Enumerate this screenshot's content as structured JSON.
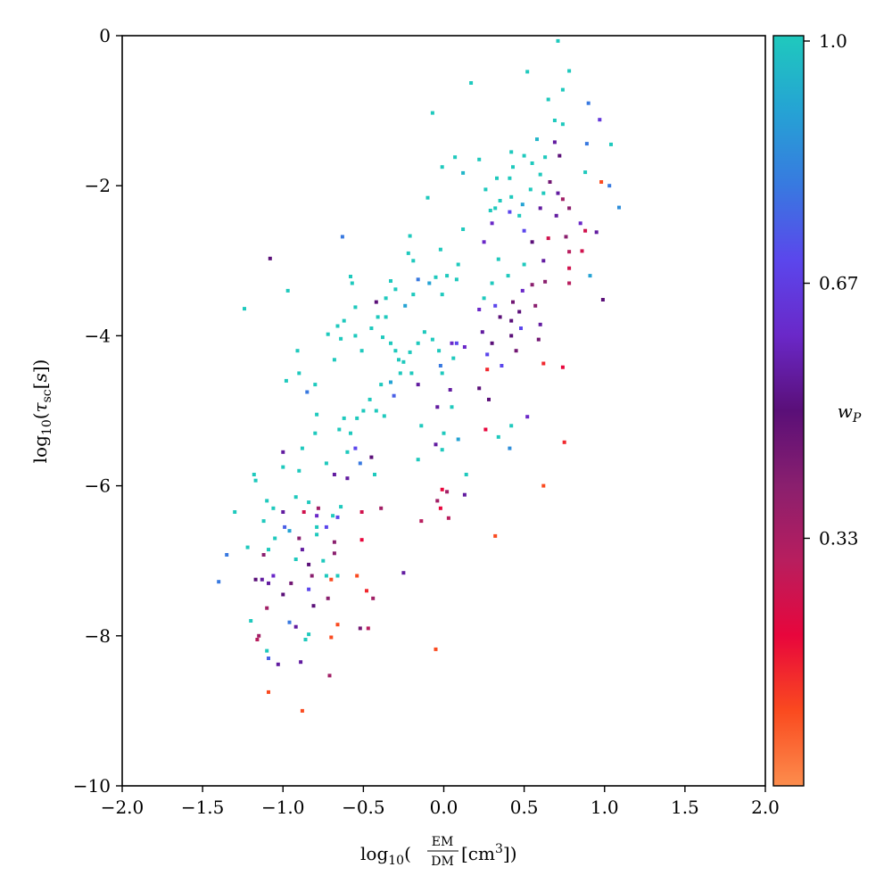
{
  "chart_data": {
    "type": "scatter",
    "title": "",
    "xlabel": "log10(EM/DM[cm^3])",
    "ylabel": "log10(τsc[s])",
    "xlim": [
      -2.0,
      2.0
    ],
    "ylim": [
      -10,
      0
    ],
    "x_ticks": [
      "−2.0",
      "−1.5",
      "−1.0",
      "−0.5",
      "0.0",
      "0.5",
      "1.0",
      "1.5",
      "2.0"
    ],
    "x_tick_values": [
      -2.0,
      -1.5,
      -1.0,
      -0.5,
      0.0,
      0.5,
      1.0,
      1.5,
      2.0
    ],
    "y_ticks": [
      "0",
      "−2",
      "−4",
      "−6",
      "−8",
      "−10"
    ],
    "y_tick_values": [
      0,
      -2,
      -4,
      -6,
      -8,
      -10
    ],
    "grid": false,
    "legend": "none",
    "colorbar": {
      "label": "w_P",
      "ticks": [
        "1.0",
        "0.67",
        "0.33"
      ],
      "tick_values": [
        1.0,
        0.67,
        0.33
      ],
      "range": [
        0.0,
        1.0
      ],
      "colors": [
        "#fc8d4d",
        "#fa4a1f",
        "#e8063c",
        "#b81e5e",
        "#8a1f6e",
        "#5a0f78",
        "#6a28c8",
        "#5b46ec",
        "#3879e0",
        "#25a3d4",
        "#1fc9bd"
      ]
    },
    "points": [
      [
        0.71,
        -0.07,
        1.0
      ],
      [
        0.52,
        -0.48,
        1.0
      ],
      [
        0.78,
        -0.47,
        1.0
      ],
      [
        0.17,
        -0.63,
        1.0
      ],
      [
        0.74,
        -0.72,
        1.0
      ],
      [
        0.65,
        -0.85,
        1.0
      ],
      [
        0.9,
        -0.9,
        0.8
      ],
      [
        -0.07,
        -1.03,
        1.0
      ],
      [
        0.69,
        -1.13,
        1.0
      ],
      [
        0.74,
        -1.18,
        1.0
      ],
      [
        0.97,
        -1.12,
        0.65
      ],
      [
        0.58,
        -1.38,
        0.95
      ],
      [
        0.69,
        -1.42,
        0.55
      ],
      [
        0.89,
        -1.44,
        0.8
      ],
      [
        1.04,
        -1.45,
        1.0
      ],
      [
        0.42,
        -1.55,
        1.0
      ],
      [
        0.5,
        -1.6,
        1.0
      ],
      [
        0.63,
        -1.62,
        1.0
      ],
      [
        0.72,
        -1.6,
        0.5
      ],
      [
        0.55,
        -1.7,
        1.0
      ],
      [
        0.43,
        -1.75,
        1.0
      ],
      [
        0.22,
        -1.65,
        1.0
      ],
      [
        0.07,
        -1.62,
        1.0
      ],
      [
        -0.01,
        -1.75,
        1.0
      ],
      [
        0.12,
        -1.83,
        0.95
      ],
      [
        0.41,
        -1.9,
        1.0
      ],
      [
        0.33,
        -1.9,
        1.0
      ],
      [
        0.6,
        -1.85,
        1.0
      ],
      [
        0.88,
        -1.82,
        1.0
      ],
      [
        0.98,
        -1.95,
        0.1
      ],
      [
        1.03,
        -2.0,
        0.8
      ],
      [
        0.66,
        -1.95,
        0.45
      ],
      [
        0.54,
        -2.05,
        1.0
      ],
      [
        0.62,
        -2.1,
        1.0
      ],
      [
        0.71,
        -2.1,
        0.55
      ],
      [
        0.26,
        -2.05,
        1.0
      ],
      [
        0.42,
        -2.15,
        1.0
      ],
      [
        0.35,
        -2.2,
        1.0
      ],
      [
        0.49,
        -2.25,
        0.9
      ],
      [
        0.74,
        -2.18,
        0.35
      ],
      [
        0.78,
        -2.3,
        0.4
      ],
      [
        0.6,
        -2.3,
        0.55
      ],
      [
        0.7,
        -2.4,
        0.55
      ],
      [
        1.09,
        -2.29,
        0.85
      ],
      [
        -0.1,
        -2.16,
        1.0
      ],
      [
        0.32,
        -2.3,
        1.0
      ],
      [
        0.29,
        -2.33,
        1.0
      ],
      [
        0.47,
        -2.4,
        1.0
      ],
      [
        0.41,
        -2.35,
        0.7
      ],
      [
        0.3,
        -2.5,
        0.6
      ],
      [
        0.85,
        -2.5,
        0.6
      ],
      [
        0.88,
        -2.6,
        0.25
      ],
      [
        0.95,
        -2.62,
        0.55
      ],
      [
        0.5,
        -2.6,
        0.7
      ],
      [
        0.55,
        -2.75,
        0.5
      ],
      [
        0.65,
        -2.7,
        0.25
      ],
      [
        0.76,
        -2.68,
        0.4
      ],
      [
        0.78,
        -2.88,
        0.3
      ],
      [
        0.86,
        -2.87,
        0.25
      ],
      [
        0.25,
        -2.75,
        0.6
      ],
      [
        0.12,
        -2.58,
        1.0
      ],
      [
        -0.21,
        -2.67,
        1.0
      ],
      [
        -0.63,
        -2.68,
        0.8
      ],
      [
        -1.08,
        -2.97,
        0.5
      ],
      [
        -1.24,
        -3.64,
        1.0
      ],
      [
        -0.22,
        -2.9,
        1.0
      ],
      [
        -0.19,
        -3.0,
        1.0
      ],
      [
        -0.02,
        -2.85,
        1.0
      ],
      [
        0.09,
        -3.05,
        1.0
      ],
      [
        0.34,
        -2.98,
        1.0
      ],
      [
        0.5,
        -3.05,
        1.0
      ],
      [
        0.62,
        -3.0,
        0.55
      ],
      [
        0.78,
        -3.1,
        0.25
      ],
      [
        0.91,
        -3.2,
        0.9
      ],
      [
        0.78,
        -3.3,
        0.3
      ],
      [
        0.63,
        -3.28,
        0.4
      ],
      [
        0.99,
        -3.52,
        0.5
      ],
      [
        0.55,
        -3.32,
        0.4
      ],
      [
        0.49,
        -3.4,
        0.6
      ],
      [
        0.4,
        -3.2,
        1.0
      ],
      [
        0.3,
        -3.3,
        1.0
      ],
      [
        0.25,
        -3.5,
        1.0
      ],
      [
        0.32,
        -3.6,
        0.7
      ],
      [
        0.43,
        -3.55,
        0.45
      ],
      [
        0.47,
        -3.68,
        0.5
      ],
      [
        0.57,
        -3.6,
        0.4
      ],
      [
        0.6,
        -3.85,
        0.55
      ],
      [
        0.42,
        -3.8,
        0.5
      ],
      [
        0.48,
        -3.9,
        0.7
      ],
      [
        0.59,
        -4.05,
        0.45
      ],
      [
        0.42,
        -4.0,
        0.5
      ],
      [
        0.45,
        -4.2,
        0.45
      ],
      [
        0.3,
        -4.1,
        0.5
      ],
      [
        0.35,
        -3.75,
        0.5
      ],
      [
        0.24,
        -3.95,
        0.55
      ],
      [
        0.22,
        -3.65,
        0.6
      ],
      [
        0.08,
        -3.25,
        1.0
      ],
      [
        0.02,
        -3.2,
        1.0
      ],
      [
        -0.05,
        -3.22,
        1.0
      ],
      [
        -0.01,
        -3.45,
        1.0
      ],
      [
        -0.09,
        -3.3,
        0.9
      ],
      [
        -0.16,
        -3.25,
        0.8
      ],
      [
        -0.19,
        -3.45,
        1.0
      ],
      [
        -0.24,
        -3.6,
        0.9
      ],
      [
        -0.3,
        -3.38,
        1.0
      ],
      [
        -0.33,
        -3.27,
        1.0
      ],
      [
        -0.36,
        -3.5,
        1.0
      ],
      [
        -0.42,
        -3.55,
        0.5
      ],
      [
        -0.58,
        -3.21,
        1.0
      ],
      [
        -0.57,
        -3.3,
        1.0
      ],
      [
        -0.55,
        -3.62,
        1.0
      ],
      [
        -0.62,
        -3.8,
        1.0
      ],
      [
        -0.66,
        -3.87,
        1.0
      ],
      [
        -0.64,
        -4.04,
        1.0
      ],
      [
        -0.55,
        -4.0,
        1.0
      ],
      [
        -0.51,
        -4.2,
        1.0
      ],
      [
        -0.45,
        -3.9,
        1.0
      ],
      [
        -0.41,
        -3.75,
        1.0
      ],
      [
        -0.36,
        -3.75,
        1.0
      ],
      [
        -0.38,
        -4.02,
        1.0
      ],
      [
        -0.33,
        -4.1,
        1.0
      ],
      [
        -0.3,
        -4.2,
        1.0
      ],
      [
        -0.28,
        -4.32,
        1.0
      ],
      [
        -0.25,
        -4.35,
        1.0
      ],
      [
        -0.21,
        -4.22,
        1.0
      ],
      [
        -0.16,
        -4.1,
        1.0
      ],
      [
        -0.12,
        -3.95,
        1.0
      ],
      [
        -0.07,
        -4.05,
        1.0
      ],
      [
        -0.03,
        -4.2,
        1.0
      ],
      [
        0.05,
        -4.1,
        0.6
      ],
      [
        0.08,
        -4.1,
        0.7
      ],
      [
        -0.02,
        -4.4,
        0.8
      ],
      [
        0.06,
        -4.3,
        1.0
      ],
      [
        -0.01,
        -4.5,
        1.0
      ],
      [
        -0.16,
        -4.65,
        0.55
      ],
      [
        -0.2,
        -4.5,
        1.0
      ],
      [
        -0.27,
        -4.5,
        1.0
      ],
      [
        -0.39,
        -4.65,
        1.0
      ],
      [
        -0.33,
        -4.62,
        0.9
      ],
      [
        -0.31,
        -4.8,
        0.75
      ],
      [
        -0.46,
        -4.85,
        1.0
      ],
      [
        -0.5,
        -5.0,
        1.0
      ],
      [
        -0.54,
        -5.1,
        1.0
      ],
      [
        -0.37,
        -5.07,
        1.0
      ],
      [
        -0.42,
        -5.0,
        1.0
      ],
      [
        -0.62,
        -5.1,
        1.0
      ],
      [
        -0.72,
        -3.98,
        1.0
      ],
      [
        -0.68,
        -4.32,
        1.0
      ],
      [
        -0.85,
        -4.75,
        0.8
      ],
      [
        -0.8,
        -4.65,
        1.0
      ],
      [
        -0.9,
        -4.5,
        1.0
      ],
      [
        -0.98,
        -4.6,
        1.0
      ],
      [
        -0.91,
        -4.2,
        1.0
      ],
      [
        -0.97,
        -3.4,
        1.0
      ],
      [
        -0.79,
        -5.05,
        1.0
      ],
      [
        -0.8,
        -5.3,
        1.0
      ],
      [
        -0.65,
        -5.25,
        1.0
      ],
      [
        -0.58,
        -5.3,
        1.0
      ],
      [
        -0.55,
        -5.5,
        0.7
      ],
      [
        -0.6,
        -5.55,
        1.0
      ],
      [
        -0.52,
        -5.7,
        0.8
      ],
      [
        -0.43,
        -5.85,
        1.0
      ],
      [
        -0.45,
        -5.62,
        0.5
      ],
      [
        -0.6,
        -5.9,
        0.55
      ],
      [
        -0.68,
        -5.85,
        0.55
      ],
      [
        -0.73,
        -5.7,
        1.0
      ],
      [
        -0.88,
        -5.5,
        1.0
      ],
      [
        -0.9,
        -5.8,
        1.0
      ],
      [
        -1.0,
        -5.55,
        0.55
      ],
      [
        -1.0,
        -5.75,
        1.0
      ],
      [
        -1.18,
        -5.85,
        1.0
      ],
      [
        -1.17,
        -5.93,
        1.0
      ],
      [
        -1.1,
        -6.2,
        1.0
      ],
      [
        -1.3,
        -6.35,
        1.0
      ],
      [
        -1.12,
        -6.47,
        1.0
      ],
      [
        -1.06,
        -6.3,
        1.0
      ],
      [
        -1.0,
        -6.35,
        0.55
      ],
      [
        -0.92,
        -6.15,
        1.0
      ],
      [
        -0.84,
        -6.22,
        1.0
      ],
      [
        -0.78,
        -6.3,
        0.35
      ],
      [
        -0.79,
        -6.4,
        0.6
      ],
      [
        -0.69,
        -6.4,
        1.0
      ],
      [
        -0.73,
        -6.55,
        0.7
      ],
      [
        -0.66,
        -6.42,
        0.7
      ],
      [
        -0.64,
        -6.28,
        1.0
      ],
      [
        -0.79,
        -6.55,
        1.0
      ],
      [
        -0.9,
        -6.7,
        0.4
      ],
      [
        -0.79,
        -6.65,
        1.0
      ],
      [
        -0.88,
        -6.85,
        0.55
      ],
      [
        -0.68,
        -6.9,
        0.4
      ],
      [
        -0.68,
        -6.75,
        0.4
      ],
      [
        -0.75,
        -7.0,
        1.0
      ],
      [
        -0.84,
        -7.05,
        0.5
      ],
      [
        -0.92,
        -6.98,
        1.0
      ],
      [
        -0.82,
        -7.2,
        0.4
      ],
      [
        -0.96,
        -6.6,
        0.9
      ],
      [
        -0.99,
        -6.55,
        0.75
      ],
      [
        -1.05,
        -6.7,
        1.0
      ],
      [
        -1.09,
        -6.85,
        1.0
      ],
      [
        -1.12,
        -6.92,
        0.4
      ],
      [
        -1.22,
        -6.82,
        1.0
      ],
      [
        -1.35,
        -6.92,
        0.8
      ],
      [
        -1.4,
        -7.28,
        0.8
      ],
      [
        -1.17,
        -7.25,
        0.5
      ],
      [
        -1.13,
        -7.25,
        0.55
      ],
      [
        -1.09,
        -7.3,
        0.55
      ],
      [
        -1.06,
        -7.2,
        0.6
      ],
      [
        -1.0,
        -7.45,
        0.5
      ],
      [
        -0.95,
        -7.3,
        0.45
      ],
      [
        -0.84,
        -7.38,
        0.7
      ],
      [
        -0.73,
        -7.2,
        1.0
      ],
      [
        -0.7,
        -7.25,
        0.1
      ],
      [
        -0.54,
        -7.2,
        0.1
      ],
      [
        -0.48,
        -7.4,
        0.15
      ],
      [
        -0.44,
        -7.5,
        0.35
      ],
      [
        -0.25,
        -7.16,
        0.55
      ],
      [
        -0.66,
        -7.2,
        1.0
      ],
      [
        -0.81,
        -7.6,
        0.5
      ],
      [
        -1.1,
        -7.63,
        0.35
      ],
      [
        -1.1,
        -8.2,
        1.0
      ],
      [
        -1.15,
        -8.0,
        0.35
      ],
      [
        -1.16,
        -8.05,
        0.3
      ],
      [
        -0.96,
        -7.82,
        0.8
      ],
      [
        -0.92,
        -7.88,
        0.55
      ],
      [
        -0.84,
        -7.98,
        1.0
      ],
      [
        -0.86,
        -8.05,
        1.0
      ],
      [
        -0.66,
        -7.85,
        0.1
      ],
      [
        -0.52,
        -7.9,
        0.45
      ],
      [
        -0.47,
        -7.9,
        0.3
      ],
      [
        -0.72,
        -7.5,
        0.4
      ],
      [
        -1.2,
        -7.8,
        1.0
      ],
      [
        -1.09,
        -8.3,
        0.75
      ],
      [
        -1.03,
        -8.38,
        0.55
      ],
      [
        -0.89,
        -8.35,
        0.55
      ],
      [
        -0.7,
        -8.02,
        0.1
      ],
      [
        -0.71,
        -8.53,
        0.35
      ],
      [
        -1.09,
        -8.75,
        0.1
      ],
      [
        -0.88,
        -9.0,
        0.1
      ],
      [
        -0.05,
        -8.18,
        0.1
      ],
      [
        0.32,
        -6.67,
        0.1
      ],
      [
        0.62,
        -6.0,
        0.1
      ],
      [
        0.75,
        -5.42,
        0.15
      ],
      [
        0.62,
        -4.37,
        0.15
      ],
      [
        0.74,
        -4.42,
        0.2
      ],
      [
        0.27,
        -4.45,
        0.15
      ],
      [
        0.27,
        -4.25,
        0.7
      ],
      [
        0.36,
        -4.4,
        0.7
      ],
      [
        0.13,
        -4.15,
        0.6
      ],
      [
        0.22,
        -4.7,
        0.5
      ],
      [
        0.28,
        -4.85,
        0.5
      ],
      [
        0.26,
        -5.25,
        0.2
      ],
      [
        0.42,
        -5.2,
        1.0
      ],
      [
        0.41,
        -5.5,
        0.85
      ],
      [
        0.34,
        -5.35,
        1.0
      ],
      [
        0.52,
        -5.08,
        0.6
      ],
      [
        0.09,
        -5.38,
        0.9
      ],
      [
        0.14,
        -5.85,
        1.0
      ],
      [
        -0.05,
        -5.45,
        0.55
      ],
      [
        -0.01,
        -5.52,
        1.0
      ],
      [
        -0.0,
        -5.3,
        1.0
      ],
      [
        -0.04,
        -4.95,
        0.55
      ],
      [
        0.05,
        -4.95,
        1.0
      ],
      [
        0.04,
        -4.72,
        0.55
      ],
      [
        -0.14,
        -5.2,
        1.0
      ],
      [
        -0.16,
        -5.65,
        1.0
      ],
      [
        -0.01,
        -6.05,
        0.2
      ],
      [
        0.02,
        -6.08,
        0.35
      ],
      [
        -0.04,
        -6.2,
        0.35
      ],
      [
        0.13,
        -6.12,
        0.55
      ],
      [
        -0.02,
        -6.3,
        0.2
      ],
      [
        0.03,
        -6.43,
        0.3
      ],
      [
        -0.14,
        -6.47,
        0.3
      ],
      [
        -0.39,
        -6.3,
        0.35
      ],
      [
        -0.51,
        -6.72,
        0.2
      ],
      [
        -0.51,
        -6.35,
        0.25
      ],
      [
        -0.87,
        -6.35,
        0.25
      ]
    ]
  }
}
